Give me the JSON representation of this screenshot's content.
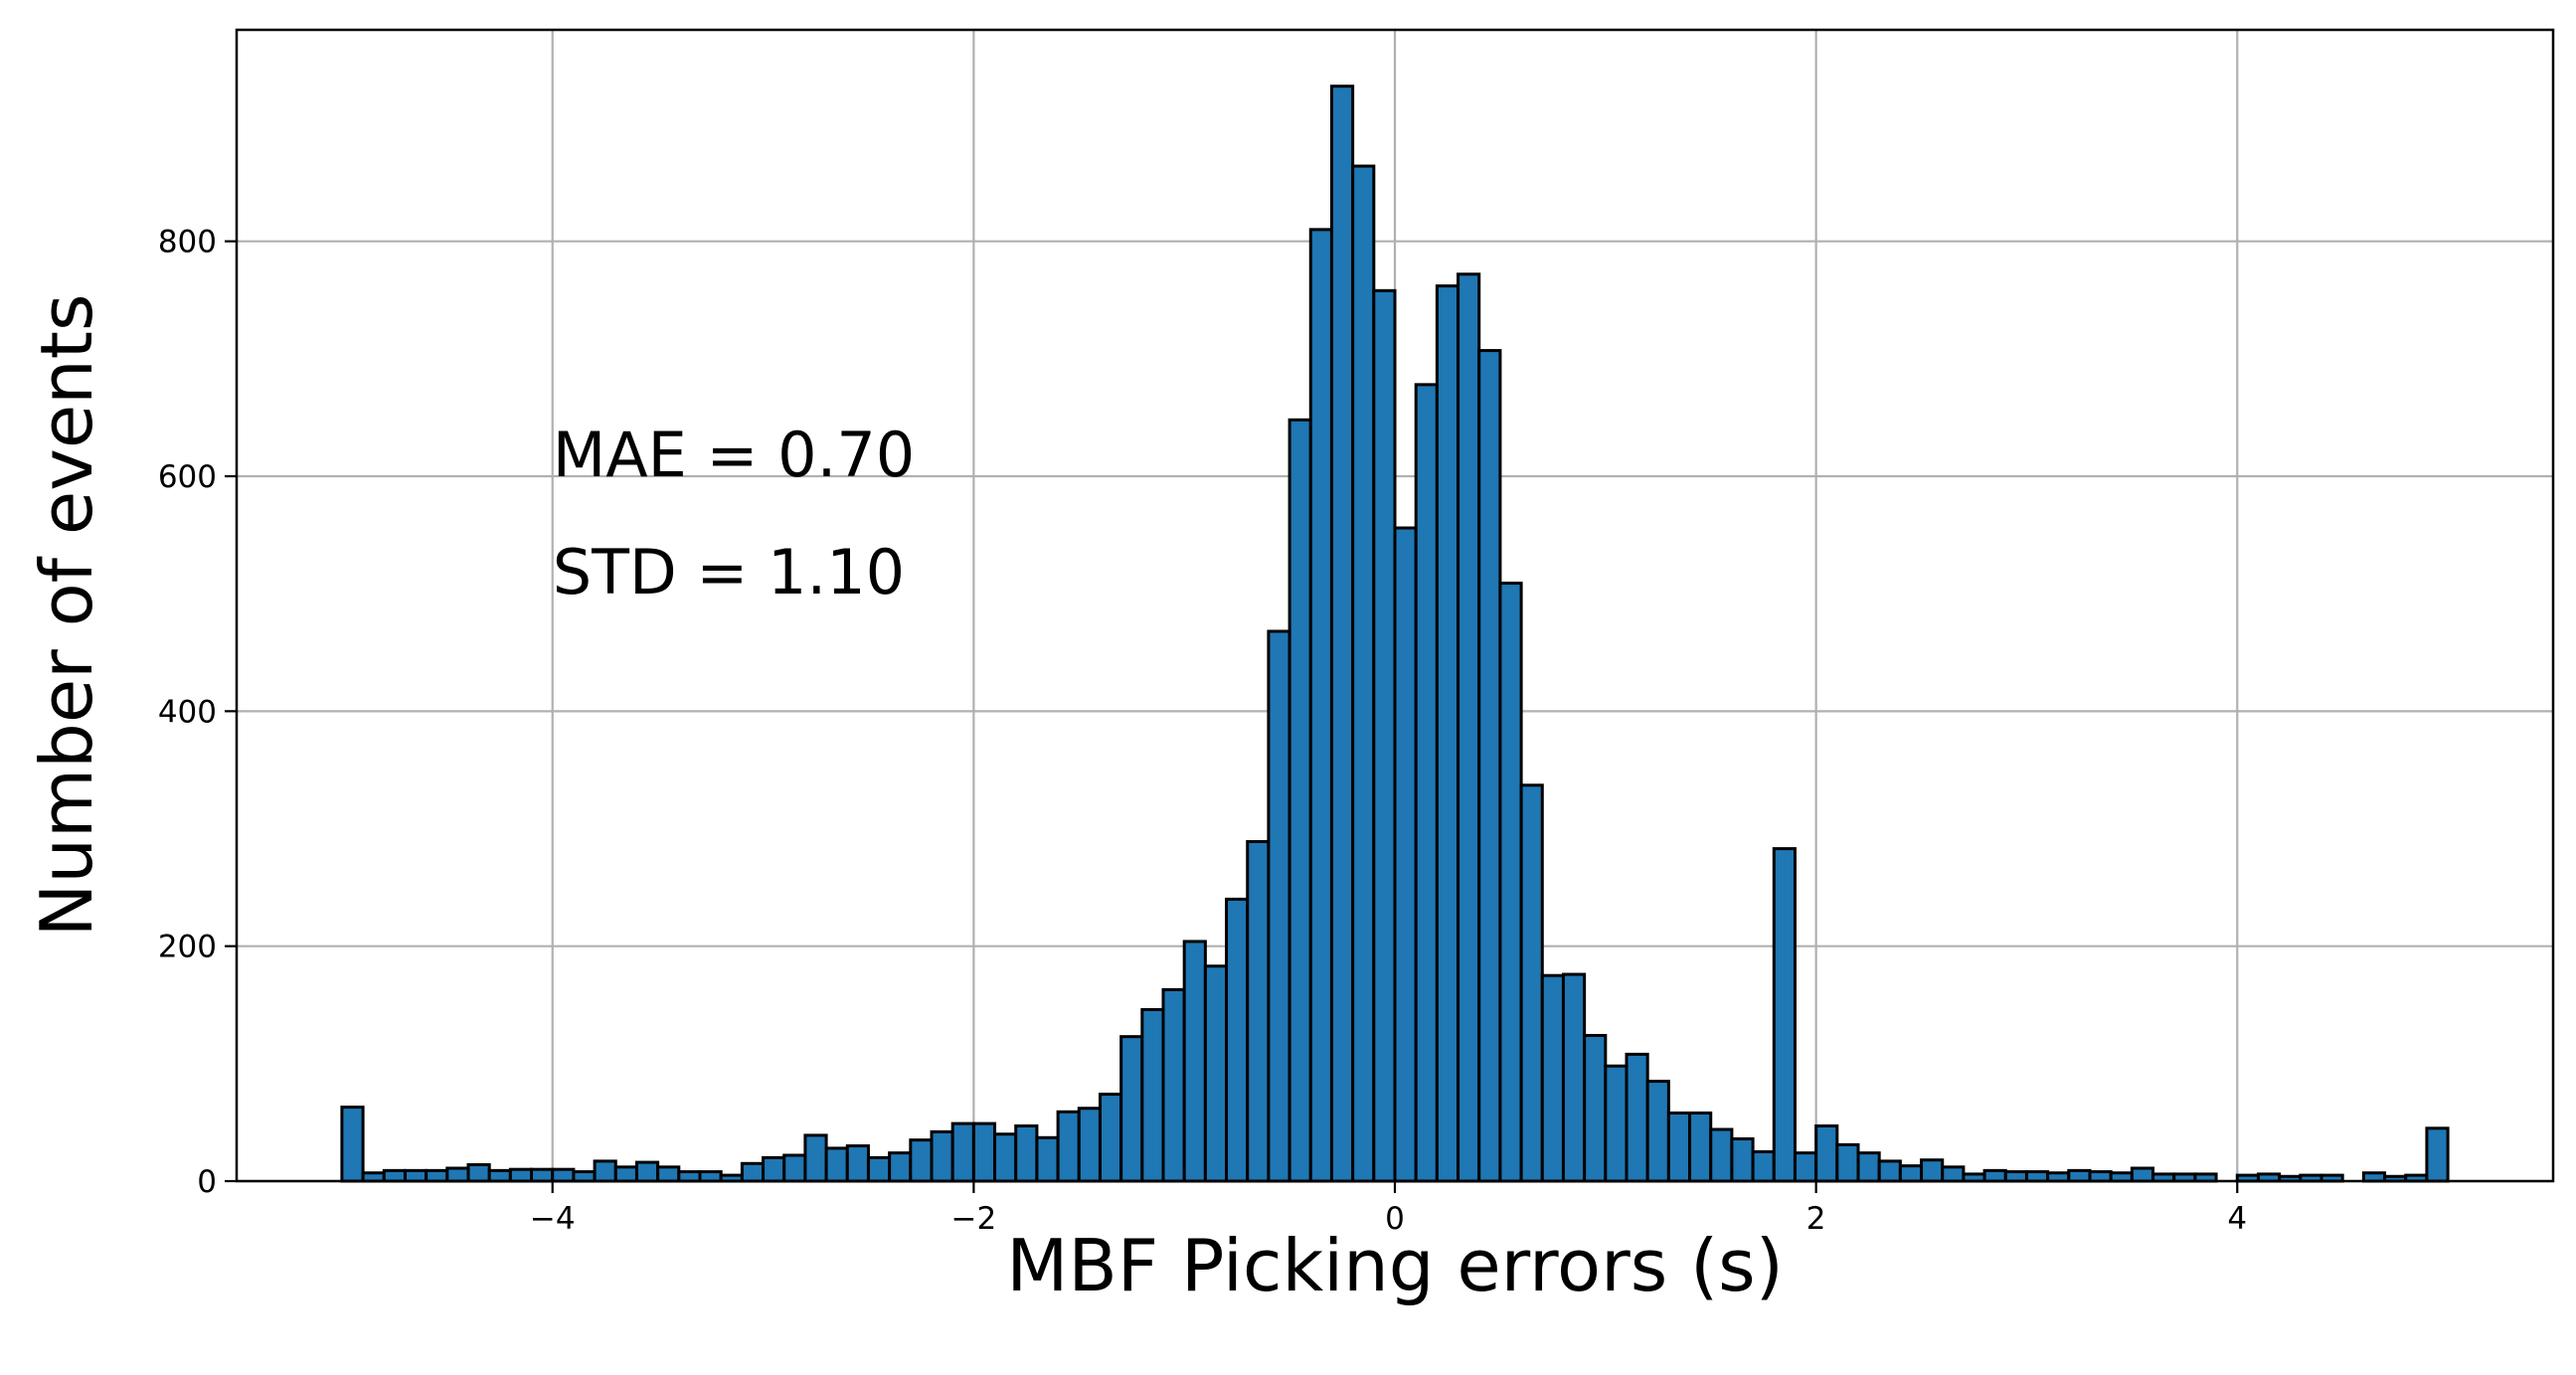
{
  "chart_data": {
    "type": "bar",
    "title": "",
    "xlabel": "MBF Picking errors (s)",
    "ylabel": "Number of events",
    "xlim": [
      -5.5,
      5.5
    ],
    "ylim": [
      0,
      980
    ],
    "grid": true,
    "bin_width": 0.1,
    "bar_color": "#1f77b4",
    "edge_color": "#000000",
    "x_ticks": [
      {
        "value": -4,
        "label": "−4"
      },
      {
        "value": -2,
        "label": "−2"
      },
      {
        "value": 0,
        "label": "0"
      },
      {
        "value": 2,
        "label": "2"
      },
      {
        "value": 4,
        "label": "4"
      }
    ],
    "y_ticks": [
      {
        "value": 0,
        "label": "0"
      },
      {
        "value": 200,
        "label": "200"
      },
      {
        "value": 400,
        "label": "400"
      },
      {
        "value": 600,
        "label": "600"
      },
      {
        "value": 800,
        "label": "800"
      }
    ],
    "annotations": [
      {
        "text": "MAE = 0.70",
        "x": -4.0,
        "y": 600
      },
      {
        "text": "STD = 1.10",
        "x": -4.0,
        "y": 500
      }
    ],
    "bin_edges_start": -5.0,
    "values": [
      63,
      7,
      9,
      9,
      9,
      11,
      14,
      9,
      10,
      10,
      10,
      8,
      17,
      12,
      16,
      12,
      8,
      8,
      5,
      15,
      20,
      22,
      39,
      28,
      30,
      20,
      24,
      35,
      42,
      49,
      49,
      40,
      47,
      37,
      59,
      62,
      74,
      123,
      146,
      163,
      204,
      183,
      240,
      289,
      468,
      648,
      810,
      932,
      864,
      758,
      556,
      678,
      762,
      772,
      707,
      509,
      337,
      175,
      176,
      124,
      98,
      108,
      85,
      58,
      58,
      44,
      36,
      25,
      283,
      24,
      47,
      31,
      24,
      17,
      13,
      18,
      12,
      6,
      9,
      8,
      8,
      7,
      9,
      8,
      7,
      11,
      6,
      6,
      6,
      0,
      5,
      6,
      4,
      5,
      5,
      0,
      7,
      4,
      5,
      45
    ]
  }
}
